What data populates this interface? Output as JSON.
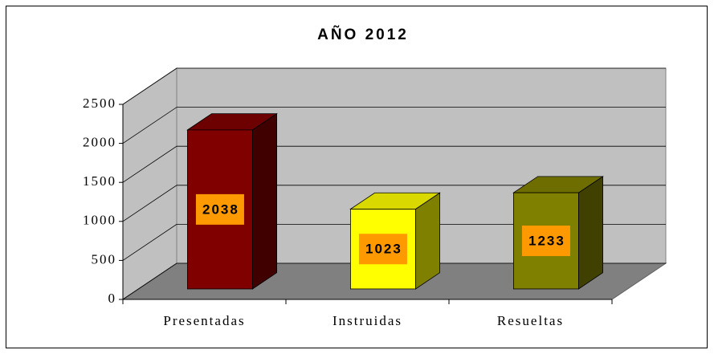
{
  "chart_data": {
    "type": "bar3d",
    "title": "AÑO 2012",
    "categories": [
      "Presentadas",
      "Instruidas",
      "Resueltas"
    ],
    "values": [
      2038,
      1023,
      1233
    ],
    "colors": [
      "#800000",
      "#ffff00",
      "#808000"
    ],
    "label_color": "#ff9900",
    "ylim": [
      0,
      2500
    ],
    "yticks": [
      0,
      500,
      1000,
      1500,
      2000,
      2500
    ],
    "grid": true
  }
}
